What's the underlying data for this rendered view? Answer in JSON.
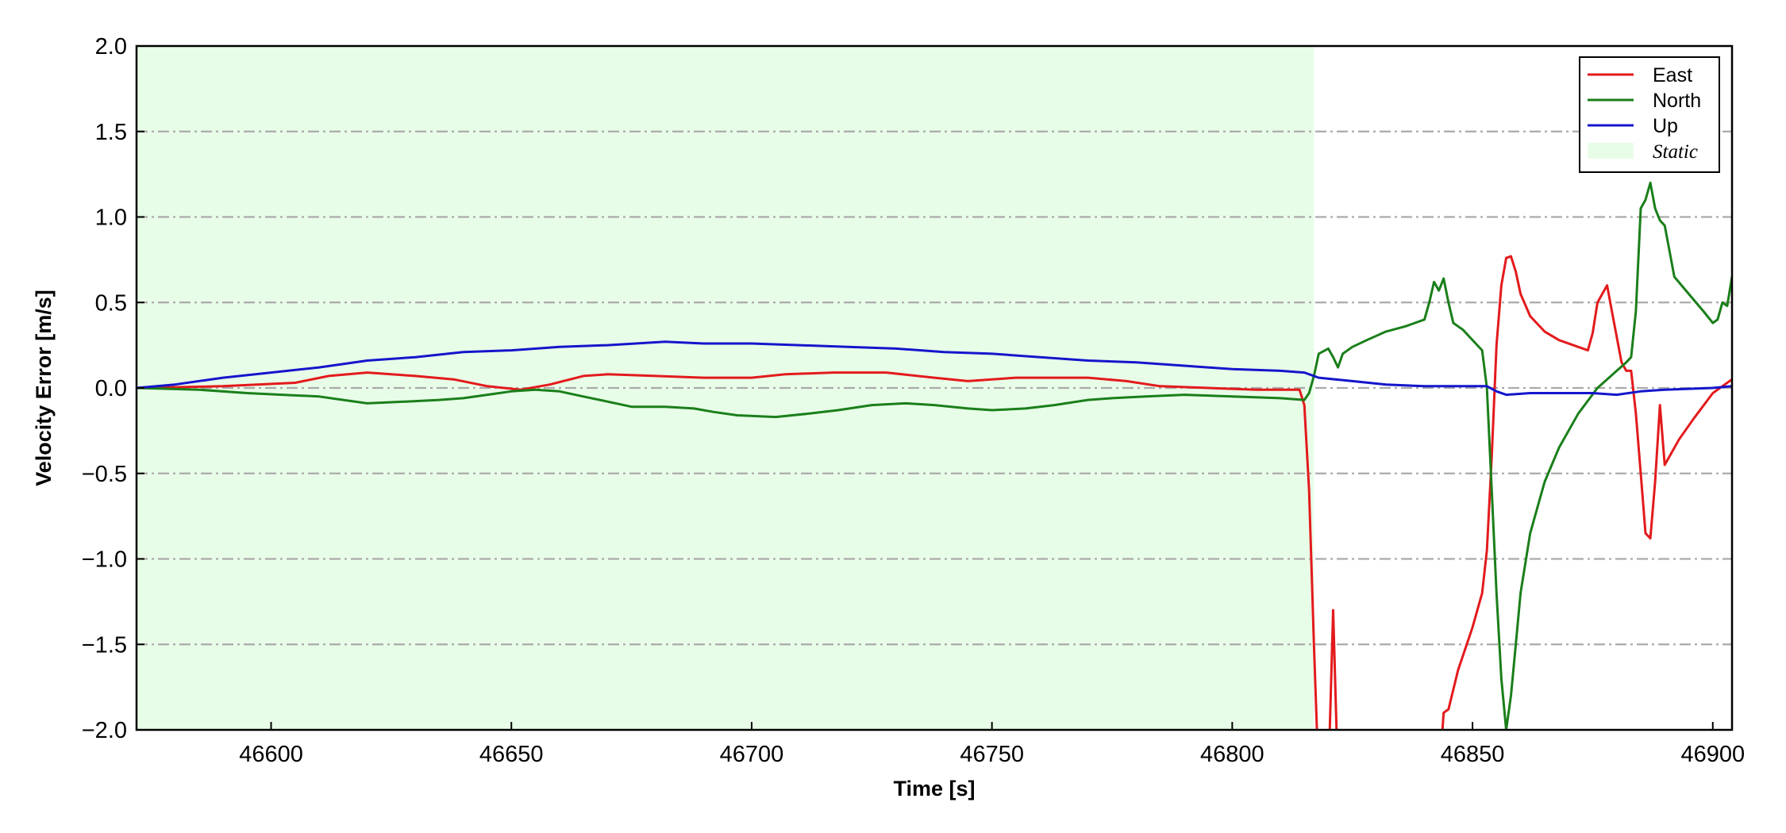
{
  "chart_data": {
    "type": "line",
    "title": "",
    "xlabel": "Time [s]",
    "ylabel": "Velocity Error [m/s]",
    "xlim": [
      46572,
      46904
    ],
    "ylim": [
      -2.0,
      2.0
    ],
    "xticks": [
      46600,
      46650,
      46700,
      46750,
      46800,
      46850,
      46900
    ],
    "yticks": [
      -2.0,
      -1.5,
      -1.0,
      -0.5,
      0.0,
      0.5,
      1.0,
      1.5,
      2.0
    ],
    "ytick_labels": [
      "−2.0",
      "−1.5",
      "−1.0",
      "−0.5",
      "0.0",
      "0.5",
      "1.0",
      "1.5",
      "2.0"
    ],
    "grid": "horizontal dash-dot",
    "legend_position": "top-right",
    "static_region": {
      "label": "Static",
      "x_start": 46572,
      "x_end": 46817,
      "color": "#e8fde8"
    },
    "series": [
      {
        "name": "East",
        "color": "#e31a1c",
        "points": [
          [
            46572,
            0.0
          ],
          [
            46590,
            0.01
          ],
          [
            46605,
            0.03
          ],
          [
            46612,
            0.07
          ],
          [
            46620,
            0.09
          ],
          [
            46630,
            0.07
          ],
          [
            46638,
            0.05
          ],
          [
            46645,
            0.01
          ],
          [
            46652,
            -0.01
          ],
          [
            46658,
            0.02
          ],
          [
            46665,
            0.07
          ],
          [
            46670,
            0.08
          ],
          [
            46680,
            0.07
          ],
          [
            46690,
            0.06
          ],
          [
            46700,
            0.06
          ],
          [
            46707,
            0.08
          ],
          [
            46717,
            0.09
          ],
          [
            46728,
            0.09
          ],
          [
            46738,
            0.06
          ],
          [
            46745,
            0.04
          ],
          [
            46750,
            0.05
          ],
          [
            46755,
            0.06
          ],
          [
            46762,
            0.06
          ],
          [
            46770,
            0.06
          ],
          [
            46778,
            0.04
          ],
          [
            46785,
            0.01
          ],
          [
            46795,
            0.0
          ],
          [
            46805,
            -0.01
          ],
          [
            46814,
            -0.01
          ],
          [
            46815,
            -0.1
          ],
          [
            46816,
            -0.6
          ],
          [
            46817,
            -1.5
          ],
          [
            46818,
            -2.3
          ],
          [
            46820,
            -2.3
          ],
          [
            46821,
            -1.3
          ],
          [
            46822,
            -2.3
          ],
          [
            46843,
            -2.3
          ],
          [
            46844,
            -1.9
          ],
          [
            46845,
            -1.88
          ],
          [
            46847,
            -1.65
          ],
          [
            46850,
            -1.4
          ],
          [
            46852,
            -1.2
          ],
          [
            46853,
            -0.95
          ],
          [
            46854,
            -0.4
          ],
          [
            46855,
            0.25
          ],
          [
            46856,
            0.6
          ],
          [
            46857,
            0.76
          ],
          [
            46858,
            0.77
          ],
          [
            46859,
            0.68
          ],
          [
            46860,
            0.55
          ],
          [
            46862,
            0.42
          ],
          [
            46865,
            0.33
          ],
          [
            46868,
            0.28
          ],
          [
            46872,
            0.24
          ],
          [
            46874,
            0.22
          ],
          [
            46875,
            0.32
          ],
          [
            46876,
            0.5
          ],
          [
            46878,
            0.6
          ],
          [
            46879,
            0.45
          ],
          [
            46881,
            0.15
          ],
          [
            46882,
            0.1
          ],
          [
            46883,
            0.1
          ],
          [
            46884,
            -0.15
          ],
          [
            46885,
            -0.5
          ],
          [
            46886,
            -0.85
          ],
          [
            46887,
            -0.88
          ],
          [
            46888,
            -0.55
          ],
          [
            46889,
            -0.1
          ],
          [
            46890,
            -0.45
          ],
          [
            46893,
            -0.3
          ],
          [
            46896,
            -0.18
          ],
          [
            46900,
            -0.03
          ],
          [
            46904,
            0.05
          ]
        ]
      },
      {
        "name": "North",
        "color": "#1a7f1a",
        "points": [
          [
            46572,
            0.0
          ],
          [
            46585,
            -0.01
          ],
          [
            46595,
            -0.03
          ],
          [
            46610,
            -0.05
          ],
          [
            46615,
            -0.07
          ],
          [
            46620,
            -0.09
          ],
          [
            46628,
            -0.08
          ],
          [
            46635,
            -0.07
          ],
          [
            46640,
            -0.06
          ],
          [
            46645,
            -0.04
          ],
          [
            46650,
            -0.02
          ],
          [
            46655,
            -0.01
          ],
          [
            46660,
            -0.02
          ],
          [
            46665,
            -0.05
          ],
          [
            46670,
            -0.08
          ],
          [
            46675,
            -0.11
          ],
          [
            46682,
            -0.11
          ],
          [
            46688,
            -0.12
          ],
          [
            46692,
            -0.14
          ],
          [
            46697,
            -0.16
          ],
          [
            46705,
            -0.17
          ],
          [
            46712,
            -0.15
          ],
          [
            46718,
            -0.13
          ],
          [
            46725,
            -0.1
          ],
          [
            46732,
            -0.09
          ],
          [
            46738,
            -0.1
          ],
          [
            46745,
            -0.12
          ],
          [
            46750,
            -0.13
          ],
          [
            46757,
            -0.12
          ],
          [
            46763,
            -0.1
          ],
          [
            46770,
            -0.07
          ],
          [
            46775,
            -0.06
          ],
          [
            46782,
            -0.05
          ],
          [
            46790,
            -0.04
          ],
          [
            46800,
            -0.05
          ],
          [
            46810,
            -0.06
          ],
          [
            46815,
            -0.07
          ],
          [
            46816,
            -0.03
          ],
          [
            46817,
            0.07
          ],
          [
            46818,
            0.2
          ],
          [
            46820,
            0.23
          ],
          [
            46821,
            0.18
          ],
          [
            46822,
            0.12
          ],
          [
            46823,
            0.2
          ],
          [
            46825,
            0.24
          ],
          [
            46828,
            0.28
          ],
          [
            46832,
            0.33
          ],
          [
            46836,
            0.36
          ],
          [
            46840,
            0.4
          ],
          [
            46841,
            0.5
          ],
          [
            46842,
            0.62
          ],
          [
            46843,
            0.57
          ],
          [
            46844,
            0.64
          ],
          [
            46845,
            0.5
          ],
          [
            46846,
            0.38
          ],
          [
            46848,
            0.34
          ],
          [
            46851,
            0.25
          ],
          [
            46852,
            0.22
          ],
          [
            46853,
            0.0
          ],
          [
            46854,
            -0.6
          ],
          [
            46855,
            -1.2
          ],
          [
            46856,
            -1.7
          ],
          [
            46857,
            -2.0
          ],
          [
            46858,
            -1.8
          ],
          [
            46859,
            -1.5
          ],
          [
            46860,
            -1.2
          ],
          [
            46862,
            -0.85
          ],
          [
            46865,
            -0.55
          ],
          [
            46868,
            -0.35
          ],
          [
            46872,
            -0.15
          ],
          [
            46876,
            0.0
          ],
          [
            46880,
            0.1
          ],
          [
            46882,
            0.15
          ],
          [
            46883,
            0.18
          ],
          [
            46884,
            0.45
          ],
          [
            46885,
            1.05
          ],
          [
            46886,
            1.1
          ],
          [
            46887,
            1.2
          ],
          [
            46888,
            1.05
          ],
          [
            46889,
            0.98
          ],
          [
            46890,
            0.95
          ],
          [
            46891,
            0.8
          ],
          [
            46892,
            0.65
          ],
          [
            46895,
            0.55
          ],
          [
            46898,
            0.45
          ],
          [
            46900,
            0.38
          ],
          [
            46901,
            0.4
          ],
          [
            46902,
            0.5
          ],
          [
            46903,
            0.48
          ],
          [
            46904,
            0.65
          ]
        ]
      },
      {
        "name": "Up",
        "color": "#1515cc",
        "points": [
          [
            46572,
            0.0
          ],
          [
            46580,
            0.02
          ],
          [
            46590,
            0.06
          ],
          [
            46600,
            0.09
          ],
          [
            46610,
            0.12
          ],
          [
            46620,
            0.16
          ],
          [
            46630,
            0.18
          ],
          [
            46640,
            0.21
          ],
          [
            46650,
            0.22
          ],
          [
            46660,
            0.24
          ],
          [
            46670,
            0.25
          ],
          [
            46682,
            0.27
          ],
          [
            46690,
            0.26
          ],
          [
            46700,
            0.26
          ],
          [
            46710,
            0.25
          ],
          [
            46720,
            0.24
          ],
          [
            46730,
            0.23
          ],
          [
            46740,
            0.21
          ],
          [
            46750,
            0.2
          ],
          [
            46760,
            0.18
          ],
          [
            46770,
            0.16
          ],
          [
            46780,
            0.15
          ],
          [
            46790,
            0.13
          ],
          [
            46800,
            0.11
          ],
          [
            46810,
            0.1
          ],
          [
            46815,
            0.09
          ],
          [
            46818,
            0.06
          ],
          [
            46825,
            0.04
          ],
          [
            46832,
            0.02
          ],
          [
            46840,
            0.01
          ],
          [
            46848,
            0.01
          ],
          [
            46853,
            0.01
          ],
          [
            46855,
            -0.02
          ],
          [
            46857,
            -0.04
          ],
          [
            46862,
            -0.03
          ],
          [
            46870,
            -0.03
          ],
          [
            46875,
            -0.03
          ],
          [
            46880,
            -0.04
          ],
          [
            46885,
            -0.02
          ],
          [
            46890,
            -0.01
          ],
          [
            46900,
            0.0
          ],
          [
            46904,
            0.01
          ]
        ]
      }
    ]
  }
}
